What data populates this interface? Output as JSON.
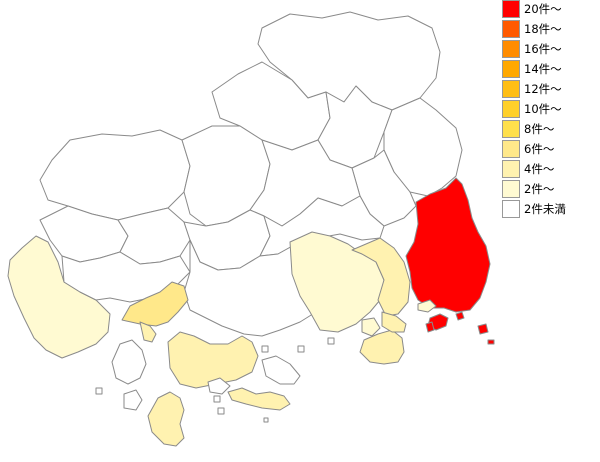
{
  "legend": [
    {
      "label": "20件～",
      "color": "#ff0000"
    },
    {
      "label": "18件～",
      "color": "#ff5a00"
    },
    {
      "label": "16件～",
      "color": "#ff8c00"
    },
    {
      "label": "14件～",
      "color": "#ffa800"
    },
    {
      "label": "12件～",
      "color": "#ffbe14"
    },
    {
      "label": "10件～",
      "color": "#ffd02a"
    },
    {
      "label": "8件～",
      "color": "#ffe04c"
    },
    {
      "label": "6件～",
      "color": "#ffe88a"
    },
    {
      "label": "4件～",
      "color": "#fff2b0"
    },
    {
      "label": "2件～",
      "color": "#fffad2"
    },
    {
      "label": "2件未満",
      "color": "#ffffff"
    }
  ],
  "regions": [
    {
      "name": "region-fukuyama",
      "level": "20件～"
    },
    {
      "name": "region-onomichi",
      "level": "4件～"
    },
    {
      "name": "region-mihara",
      "level": "2件～"
    },
    {
      "name": "region-innoshima",
      "level": "4件～"
    },
    {
      "name": "region-otake",
      "level": "2件～"
    },
    {
      "name": "region-hiroshima-central",
      "level": "6件～"
    },
    {
      "name": "region-kure",
      "level": "4件～"
    },
    {
      "name": "region-kurahashi",
      "level": "4件～"
    },
    {
      "name": "region-etajima",
      "level": "4件～"
    },
    {
      "name": "region-osaki",
      "level": "4件～"
    },
    {
      "name": "region-other",
      "level": "2件未満"
    }
  ]
}
